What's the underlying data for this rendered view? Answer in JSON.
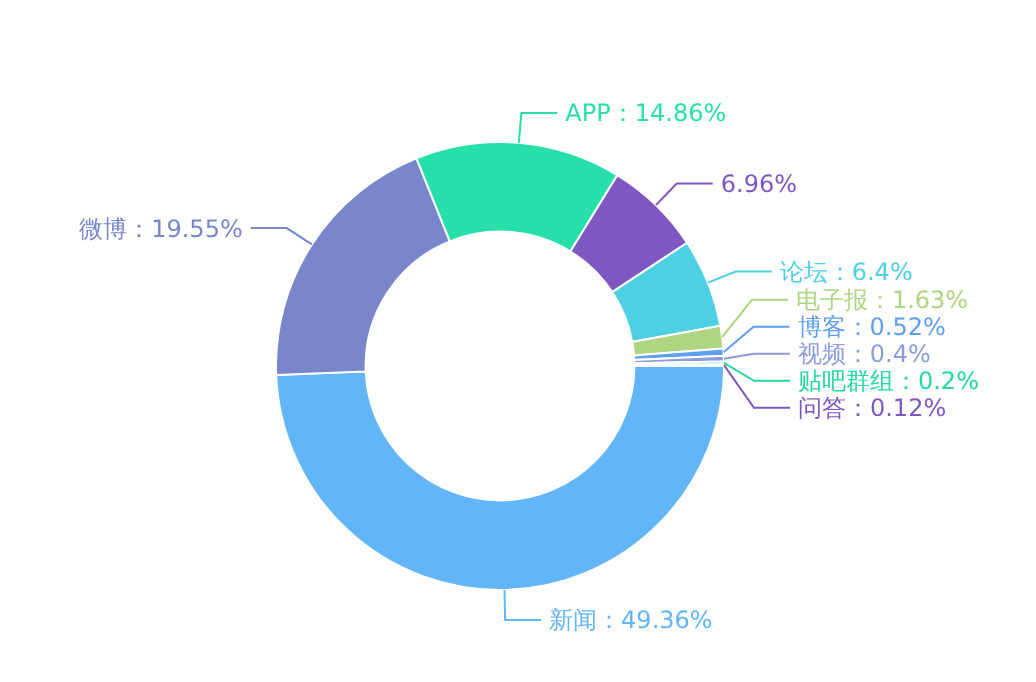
{
  "chart_data": {
    "type": "donut",
    "categories": [
      "新闻",
      "微博",
      "APP",
      null,
      "论坛",
      "电子报",
      "博客",
      "视频",
      "贴吧群组",
      "问答"
    ],
    "values": [
      49.36,
      19.55,
      14.86,
      6.96,
      6.4,
      1.63,
      0.52,
      0.4,
      0.2,
      0.12
    ],
    "colors": [
      "#62b5f7",
      "#7986cb",
      "#27e0a9",
      "#7e57c2",
      "#4dd0e1",
      "#aed581",
      "#5e9ff0",
      "#8d9bd8",
      "#26d8a0",
      "#7e57c2"
    ],
    "value_labels": [
      "：49.36%",
      "：19.55%",
      "：14.86%",
      "6.96%",
      "：6.4%",
      "：1.63%",
      "：0.52%",
      "：0.4%",
      "：0.2%",
      "：0.12%"
    ]
  }
}
